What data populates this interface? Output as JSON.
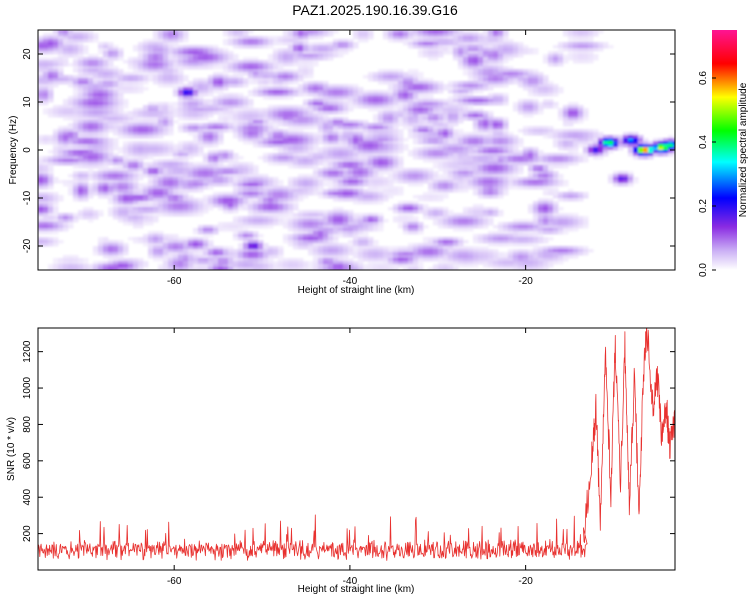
{
  "figure": {
    "title": "PAZ1.2025.190.16.39.G16"
  },
  "chart_data": [
    {
      "type": "heatmap",
      "xlabel": "Height of straight line (km)",
      "ylabel": "Frequency (Hz)",
      "xlim": [
        -75.5,
        -3
      ],
      "ylim": [
        -25,
        25
      ],
      "xticks": [
        -60,
        -40,
        -20
      ],
      "yticks": [
        -20,
        -10,
        0,
        10,
        20
      ],
      "colorbar": {
        "label": "Normalized spectral amplitude",
        "range": [
          0,
          0.75
        ],
        "ticks": [
          0.0,
          0.2,
          0.4,
          0.6
        ],
        "tick_labels": [
          "0.0",
          "0.2",
          "0.4",
          "0.6"
        ],
        "colormap": [
          "#ffffff",
          "#cbb0f5",
          "#8a2be2",
          "#0000ff",
          "#00ffff",
          "#00ff00",
          "#ffff00",
          "#ff0000",
          "#ff1493"
        ]
      },
      "noise": {
        "x_range": [
          -75.5,
          -13.5
        ],
        "y_range": [
          -25,
          25
        ],
        "amplitude_range": [
          0.02,
          0.12
        ]
      },
      "peaks": [
        {
          "x": -58.5,
          "y": 12,
          "value": 0.22
        },
        {
          "x": -51,
          "y": -20,
          "value": 0.18
        },
        {
          "x": -12,
          "y": 0,
          "value": 0.2
        },
        {
          "x": -10.5,
          "y": 1.5,
          "value": 0.45
        },
        {
          "x": -8,
          "y": 2,
          "value": 0.3
        },
        {
          "x": -6.5,
          "y": 0,
          "value": 0.65
        },
        {
          "x": -4.5,
          "y": 0.5,
          "value": 0.55
        },
        {
          "x": -3.5,
          "y": 1,
          "value": 0.4
        },
        {
          "x": -9,
          "y": -6,
          "value": 0.18
        }
      ]
    },
    {
      "type": "line",
      "xlabel": "Height of straight line (km)",
      "ylabel": "SNR (10 * v/v)",
      "xlim": [
        -75.5,
        -3
      ],
      "ylim": [
        0,
        1330
      ],
      "xticks": [
        -60,
        -40,
        -20
      ],
      "yticks": [
        200,
        400,
        600,
        800,
        1000,
        1200
      ],
      "line_color": "#e8312f",
      "baseline": {
        "x_range": [
          -75.5,
          -13
        ],
        "mean": 110,
        "spread": 60,
        "spike_max": 305
      },
      "key_points": [
        {
          "x": -13.5,
          "y": 130
        },
        {
          "x": -12.5,
          "y": 600
        },
        {
          "x": -12.0,
          "y": 880
        },
        {
          "x": -11.5,
          "y": 300
        },
        {
          "x": -10.9,
          "y": 1180
        },
        {
          "x": -10.3,
          "y": 430
        },
        {
          "x": -9.8,
          "y": 1250
        },
        {
          "x": -9.2,
          "y": 500
        },
        {
          "x": -8.7,
          "y": 1220
        },
        {
          "x": -8.2,
          "y": 330
        },
        {
          "x": -7.6,
          "y": 1090
        },
        {
          "x": -7.1,
          "y": 250
        },
        {
          "x": -6.6,
          "y": 1070
        },
        {
          "x": -6.2,
          "y": 1320
        },
        {
          "x": -5.5,
          "y": 900
        },
        {
          "x": -5.0,
          "y": 1050
        },
        {
          "x": -4.5,
          "y": 740
        },
        {
          "x": -4.0,
          "y": 930
        },
        {
          "x": -3.6,
          "y": 650
        },
        {
          "x": -3.0,
          "y": 840
        }
      ]
    }
  ]
}
